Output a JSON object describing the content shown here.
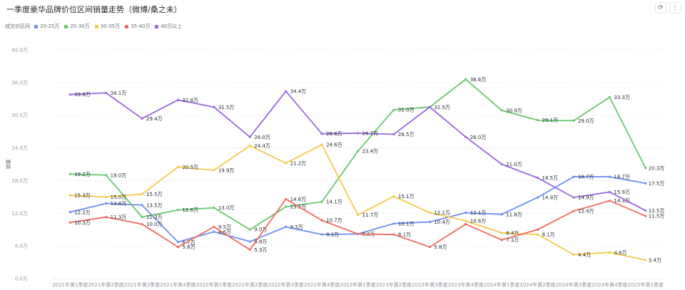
{
  "title": "一季度豪华品牌价位区间销量走势（微博/桑之未）",
  "toolbar": {
    "refresh_icon": "refresh-icon",
    "more_icon": "more-vertical-icon"
  },
  "legend_title": "成交价区间",
  "chart_data": {
    "type": "line",
    "title": "一季度豪华品牌价位区间销量走势（微博/桑之未）",
    "xlabel": "",
    "ylabel": "销量",
    "ylim": [
      0,
      42
    ],
    "yticks": [
      "0.0万",
      "6.0万",
      "12.0万",
      "18.0万",
      "24.0万",
      "30.0万",
      "36.0万",
      "42.0万"
    ],
    "grid": true,
    "legend_position": "top-left",
    "categories": [
      "2021年第1季度",
      "2021年第2季度",
      "2021年第3季度",
      "2021年第4季度",
      "2022年第1季度",
      "2022年第2季度",
      "2022年第3季度",
      "2022年第4季度",
      "2023年第1季度",
      "2023年第2季度",
      "2023年第3季度",
      "2023年第4季度",
      "2024年第1季度",
      "2024年第2季度",
      "2024年第3季度",
      "2024年第4季度",
      "2025年第1季度"
    ],
    "series": [
      {
        "name": "20-25万",
        "color": "#6b8ff0",
        "values": [
          12.2,
          13.8,
          13.5,
          6.7,
          8.6,
          6.8,
          9.5,
          8.1,
          8.2,
          10.1,
          10.4,
          12.1,
          11.8,
          14.9,
          18.7,
          18.7,
          17.5
        ],
        "labels": [
          "12.2万",
          "13.8万",
          "13.5万",
          "6.7万",
          "8.6万",
          "6.8万",
          "9.5万",
          "8.1万",
          "8.2万",
          "10.1万",
          "10.4万",
          "12.1万",
          "11.8万",
          "14.9万",
          "18.7万",
          "18.7万",
          "17.5万"
        ]
      },
      {
        "name": "25-30万",
        "color": "#66c86a",
        "values": [
          19.2,
          19.0,
          11.3,
          12.6,
          13.0,
          9.0,
          13.2,
          14.1,
          23.4,
          31.0,
          31.5,
          36.6,
          30.9,
          29.1,
          29.0,
          33.3,
          20.3
        ],
        "labels": [
          "19.2万",
          "19.0万",
          "11.3万",
          "12.6万",
          "13.0万",
          "9.0万",
          "13.2万",
          "14.1万",
          "23.4万",
          "31.0万",
          "31.5万",
          "36.6万",
          "30.9万",
          "29.1万",
          "29.0万",
          "33.3万",
          "20.3万"
        ]
      },
      {
        "name": "30-35万",
        "color": "#f5c84b",
        "values": [
          15.3,
          15.0,
          15.5,
          20.5,
          19.9,
          24.4,
          21.2,
          24.6,
          11.7,
          15.1,
          12.1,
          10.6,
          8.4,
          8.1,
          4.4,
          4.8,
          3.4
        ],
        "labels": [
          "15.3万",
          "15.0万",
          "15.5万",
          "20.5万",
          "19.9万",
          "24.4万",
          "21.2万",
          "24.6万",
          "11.7万",
          "15.1万",
          "12.1万",
          "10.6万",
          "8.4万",
          "8.1万",
          "4.4万",
          "4.8万",
          "3.4万"
        ]
      },
      {
        "name": "35-40万",
        "color": "#f0695f",
        "values": [
          10.3,
          11.3,
          10.0,
          5.8,
          9.5,
          5.3,
          14.6,
          10.7,
          8.2,
          8.1,
          5.8,
          10.0,
          7.1,
          9.0,
          12.4,
          14.3,
          11.5
        ],
        "labels": [
          "10.3万",
          "11.3万",
          "10.0万",
          "5.8万",
          "9.5万",
          "5.3万",
          "14.6万",
          "10.7万",
          "",
          "8.1万",
          "5.8万",
          "",
          "7.1万",
          "",
          "12.4万",
          "14.3万",
          "11.5万"
        ]
      },
      {
        "name": "40万以上",
        "color": "#9b66e0",
        "values": [
          33.8,
          34.1,
          29.4,
          32.8,
          31.5,
          26.0,
          34.4,
          26.6,
          26.7,
          26.5,
          31.5,
          26.0,
          21.0,
          18.5,
          14.9,
          15.9,
          12.5
        ],
        "labels": [
          "33.8万",
          "34.1万",
          "29.4万",
          "32.8万",
          "31.5万",
          "26.0万",
          "34.4万",
          "26.6万",
          "26.7万",
          "26.5万",
          "",
          "26.0万",
          "21.0万",
          "18.5万",
          "14.9万",
          "15.9万",
          "12.5万"
        ]
      }
    ]
  }
}
